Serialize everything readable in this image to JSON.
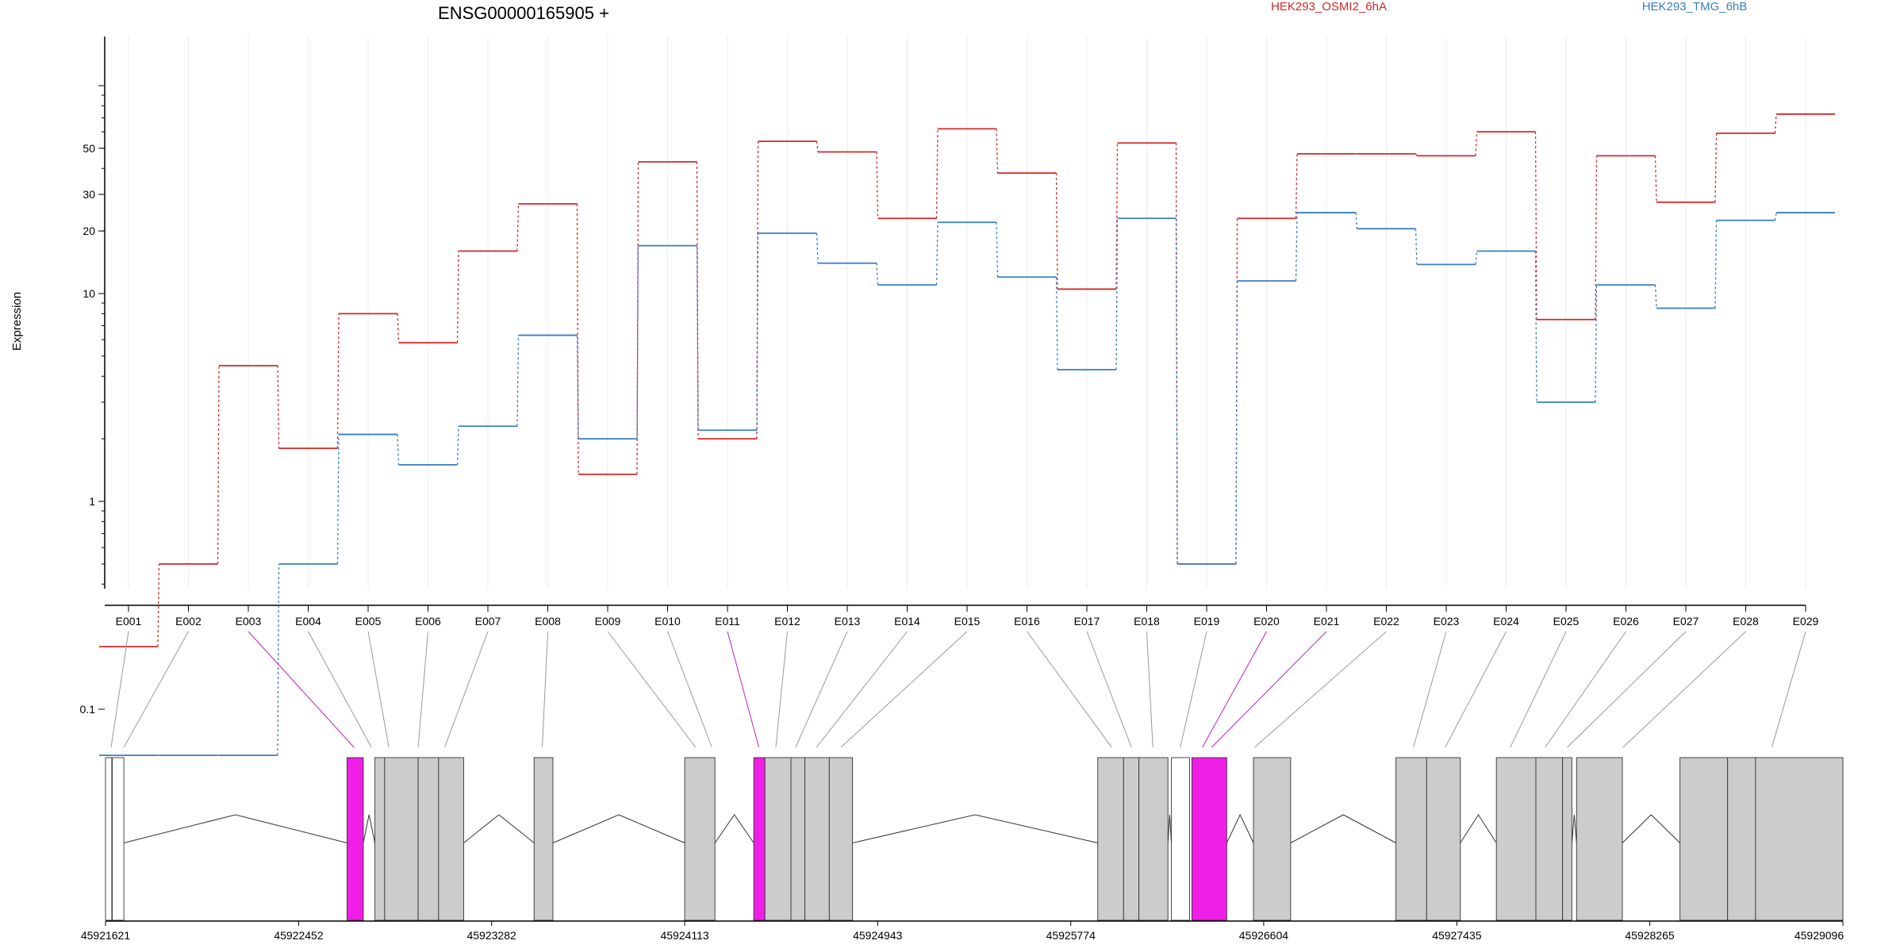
{
  "chart_data": {
    "type": "line",
    "title": "ENSG00000165905 +",
    "ylabel": "Expression",
    "yscale": "log",
    "y_ticks": [
      {
        "value": 0.1,
        "label": "0.1"
      },
      {
        "value": 1,
        "label": "1"
      },
      {
        "value": 10,
        "label": "10"
      },
      {
        "value": 20,
        "label": "20"
      },
      {
        "value": 30,
        "label": "30"
      },
      {
        "value": 50,
        "label": "50"
      }
    ],
    "categories": [
      "E001",
      "E002",
      "E003",
      "E004",
      "E005",
      "E006",
      "E007",
      "E008",
      "E009",
      "E010",
      "E011",
      "E012",
      "E013",
      "E014",
      "E015",
      "E016",
      "E017",
      "E018",
      "E019",
      "E020",
      "E021",
      "E022",
      "E023",
      "E024",
      "E025",
      "E026",
      "E027",
      "E028",
      "E029"
    ],
    "series": [
      {
        "name": "HEK293_OSMI2_6hA",
        "color": "#d62728",
        "values": [
          0.2,
          0.5,
          4.5,
          1.8,
          8.0,
          5.8,
          16.0,
          27.0,
          1.35,
          43.0,
          2.0,
          54.0,
          48.0,
          23.0,
          62.0,
          38.0,
          10.5,
          53.0,
          0.5,
          23.0,
          47.0,
          47.0,
          46.0,
          60.0,
          7.5,
          46.0,
          27.5,
          59.0,
          73.0
        ]
      },
      {
        "name": "HEK293_TMG_6hB",
        "color": "#3a7dc0",
        "values": [
          0.06,
          0.06,
          0.06,
          0.5,
          2.1,
          1.5,
          2.3,
          6.3,
          2.0,
          17.0,
          2.2,
          19.5,
          14.0,
          11.0,
          22.0,
          12.0,
          4.3,
          23.0,
          0.5,
          11.5,
          24.5,
          20.5,
          13.8,
          16.0,
          3.0,
          11.0,
          8.5,
          22.5,
          24.5
        ]
      }
    ],
    "gene_model": {
      "coordinate_labels": [
        "45921621",
        "45922452",
        "45923282",
        "45924113",
        "45924943",
        "45925774",
        "45926604",
        "45927435",
        "45928265",
        "45929096"
      ],
      "genomic_range": [
        45921621,
        45929096
      ],
      "exons": [
        {
          "start": 45921621,
          "end": 45921648,
          "style": "white"
        },
        {
          "start": 45921650,
          "end": 45921700,
          "style": "white"
        },
        {
          "start": 45922660,
          "end": 45922730,
          "style": "magenta"
        },
        {
          "start": 45922780,
          "end": 45922822,
          "style": "gray"
        },
        {
          "start": 45922822,
          "end": 45922966,
          "style": "gray"
        },
        {
          "start": 45922966,
          "end": 45923054,
          "style": "gray"
        },
        {
          "start": 45923054,
          "end": 45923162,
          "style": "gray"
        },
        {
          "start": 45923465,
          "end": 45923546,
          "style": "gray"
        },
        {
          "start": 45924113,
          "end": 45924243,
          "style": "gray"
        },
        {
          "start": 45924410,
          "end": 45924458,
          "style": "magenta"
        },
        {
          "start": 45924458,
          "end": 45924570,
          "style": "gray"
        },
        {
          "start": 45924570,
          "end": 45924630,
          "style": "gray"
        },
        {
          "start": 45924630,
          "end": 45924735,
          "style": "gray"
        },
        {
          "start": 45924735,
          "end": 45924835,
          "style": "gray"
        },
        {
          "start": 45925890,
          "end": 45926001,
          "style": "gray"
        },
        {
          "start": 45926001,
          "end": 45926067,
          "style": "gray"
        },
        {
          "start": 45926067,
          "end": 45926192,
          "style": "gray"
        },
        {
          "start": 45926207,
          "end": 45926285,
          "style": "white"
        },
        {
          "start": 45926295,
          "end": 45926445,
          "style": "magenta"
        },
        {
          "start": 45926560,
          "end": 45926720,
          "style": "gray"
        },
        {
          "start": 45927173,
          "end": 45927305,
          "style": "gray"
        },
        {
          "start": 45927305,
          "end": 45927450,
          "style": "gray"
        },
        {
          "start": 45927605,
          "end": 45927775,
          "style": "gray"
        },
        {
          "start": 45927775,
          "end": 45927890,
          "style": "gray"
        },
        {
          "start": 45927890,
          "end": 45927930,
          "style": "gray"
        },
        {
          "start": 45927950,
          "end": 45928147,
          "style": "gray"
        },
        {
          "start": 45928395,
          "end": 45928600,
          "style": "gray"
        },
        {
          "start": 45928600,
          "end": 45928720,
          "style": "gray"
        },
        {
          "start": 45928720,
          "end": 45929096,
          "style": "gray"
        }
      ],
      "exon_to_bin_connections": [
        45921645,
        45921700,
        45922690,
        45922765,
        45922840,
        45922966,
        45923080,
        45923500,
        45924160,
        45924230,
        45924432,
        45924505,
        45924590,
        45924680,
        45924785,
        45925950,
        45926035,
        45926127,
        45926245,
        45926340,
        45926380,
        45926565,
        45927248,
        45927385,
        45927665,
        45927815,
        45927910,
        45928150,
        45928790
      ],
      "colors": {
        "gray": "#cccccc",
        "magenta": "#f01fe8",
        "white": "#ffffff"
      }
    }
  }
}
